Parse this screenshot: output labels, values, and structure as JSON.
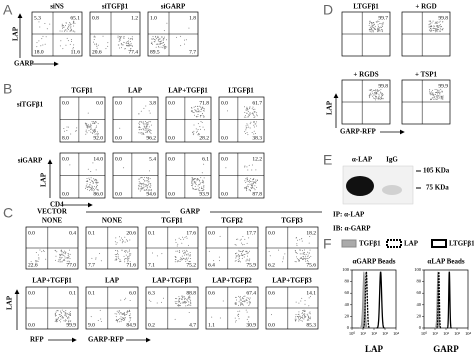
{
  "panel_a": {
    "letter": "A",
    "y_label": "LAP",
    "x_label": "GARP",
    "plots": [
      {
        "title": "siNS",
        "quadrants": [
          "5.3",
          "65.1",
          "18.0",
          "11.6"
        ]
      },
      {
        "title": "siTGFβ1",
        "quadrants": [
          "0.8",
          "1.2",
          "20.6",
          "77.4"
        ]
      },
      {
        "title": "siGARP",
        "quadrants": [
          "1.0",
          "1.8",
          "89.5",
          "7.7"
        ]
      }
    ]
  },
  "panel_b": {
    "letter": "B",
    "y_label": "LAP",
    "x_label": "CD4",
    "titles": [
      "TGFβ1",
      "LAP",
      "LAP+TGFβ1",
      "LTGFβ1"
    ],
    "rows": [
      {
        "label": "siTGFβ1",
        "plots": [
          [
            "0.0",
            "0.0",
            "8.0",
            "92.0"
          ],
          [
            "0.0",
            "3.8",
            "0.0",
            "96.2"
          ],
          [
            "0.0",
            "71.8",
            "0.0",
            "28.2"
          ],
          [
            "0.0",
            "61.7",
            "0.0",
            "38.3"
          ]
        ]
      },
      {
        "label": "siGARP",
        "plots": [
          [
            "0.0",
            "14.0",
            "0.0",
            "86.0"
          ],
          [
            "0.0",
            "5.4",
            "0.0",
            "94.6"
          ],
          [
            "0.0",
            "6.1",
            "0.0",
            "93.9"
          ],
          [
            "0.0",
            "12.2",
            "0.0",
            "87.8"
          ]
        ]
      }
    ]
  },
  "panel_c": {
    "letter": "C",
    "groups": [
      "VECTOR",
      "GARP"
    ],
    "y_label": "LAP",
    "x_labels": [
      "RFP",
      "GARP-RFP"
    ],
    "rows": [
      {
        "plots": [
          {
            "title": "NONE",
            "quadrants": [
              "0.0",
              "0.4",
              "22.6",
              "77.0"
            ]
          },
          {
            "title": "NONE",
            "quadrants": [
              "0.1",
              "20.6",
              "7.7",
              "71.6"
            ]
          },
          {
            "title": "TGFβ1",
            "quadrants": [
              "0.1",
              "17.6",
              "7.1",
              "75.2"
            ]
          },
          {
            "title": "TGFβ2",
            "quadrants": [
              "0.0",
              "17.7",
              "6.4",
              "75.9"
            ]
          },
          {
            "title": "TGFβ3",
            "quadrants": [
              "0.0",
              "18.2",
              "6.2",
              "75.6"
            ]
          }
        ]
      },
      {
        "plots": [
          {
            "title": "LAP+TGFβ1",
            "quadrants": [
              "0.0",
              "0.1",
              "0.0",
              "99.9"
            ]
          },
          {
            "title": "LAP",
            "quadrants": [
              "0.1",
              "6.0",
              "9.0",
              "84.9"
            ]
          },
          {
            "title": "LAP+TGFβ1",
            "quadrants": [
              "6.3",
              "88.8",
              "0.2",
              "4.7"
            ]
          },
          {
            "title": "LAP+TGFβ2",
            "quadrants": [
              "0.6",
              "67.4",
              "1.1",
              "30.9"
            ]
          },
          {
            "title": "LAP+TGFβ3",
            "quadrants": [
              "0.6",
              "14.1",
              "0.0",
              "85.3"
            ]
          }
        ]
      }
    ]
  },
  "panel_d": {
    "letter": "D",
    "y_label": "LAP",
    "x_label": "GARP-RFP",
    "plots": [
      {
        "title": "LTGFβ1",
        "quadrants": [
          "99.7"
        ]
      },
      {
        "title": "+ RGD",
        "quadrants": [
          "99.8"
        ]
      },
      {
        "title": "+ RGDS",
        "quadrants": [
          "99.8"
        ]
      },
      {
        "title": "+ TSP1",
        "quadrants": [
          "99.9"
        ]
      }
    ]
  },
  "panel_e": {
    "letter": "E",
    "lanes": [
      "α-LAP",
      "IgG"
    ],
    "markers": [
      "105 KDa",
      "75 KDa"
    ],
    "notes": [
      "IP: α-LAP",
      "IB: α-GARP"
    ]
  },
  "panel_f": {
    "letter": "F",
    "legend": [
      "TGFβ1",
      "LAP",
      "LTGFβ1"
    ],
    "ylim": [
      0,
      100
    ],
    "yticks": [
      0,
      20,
      40,
      60,
      80,
      100
    ],
    "xlim": [
      1,
      10000
    ],
    "xticks": [
      {
        "value": 1,
        "label": "10⁰"
      },
      {
        "value": 10,
        "label": "10¹"
      },
      {
        "value": 100,
        "label": "10²"
      },
      {
        "value": 1000,
        "label": "10³"
      },
      {
        "value": 10000,
        "label": "10⁴"
      }
    ],
    "plots": [
      {
        "title": "αGARP Beads",
        "x_label": "LAP"
      },
      {
        "title": "αLAP Beads",
        "x_label": "GARP"
      }
    ]
  }
}
